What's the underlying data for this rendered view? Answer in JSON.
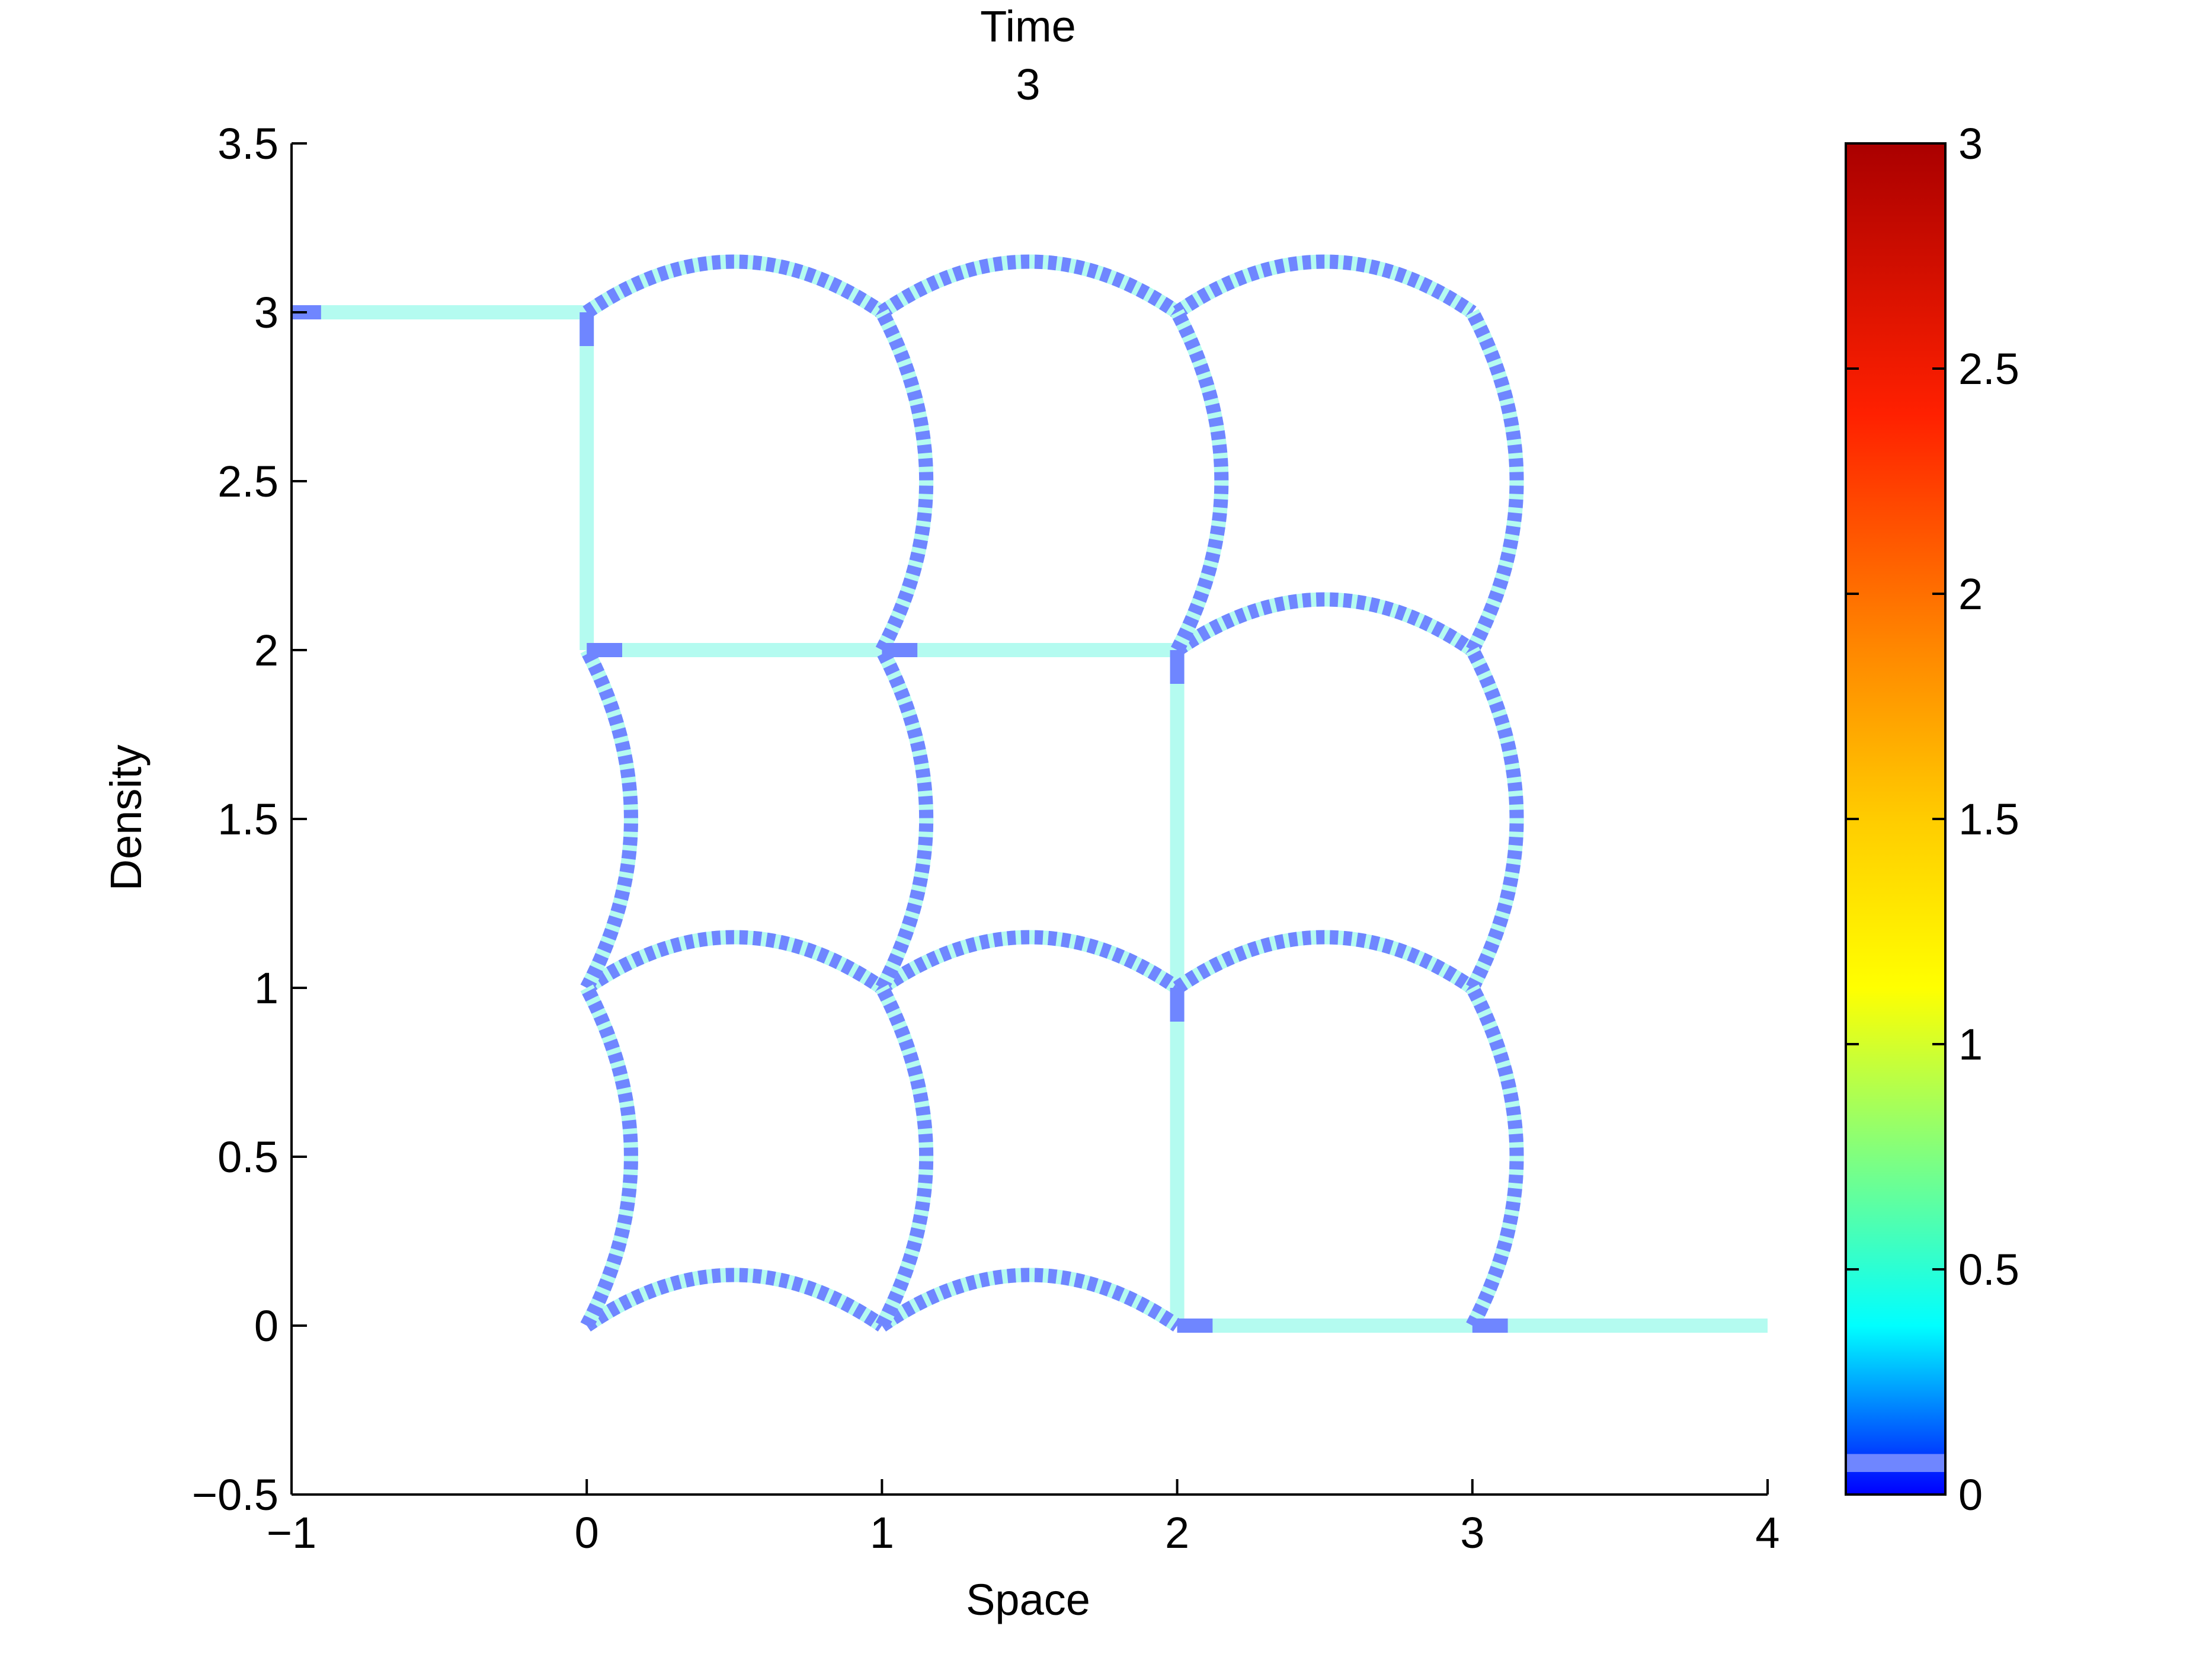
{
  "chart_data": {
    "type": "line",
    "title_line1": "Time",
    "title_line2": "3",
    "xlabel": "Space",
    "ylabel": "Density",
    "xlim": [
      -1,
      4
    ],
    "ylim": [
      -0.5,
      3.5
    ],
    "xticks": [
      -1,
      0,
      1,
      2,
      3,
      4
    ],
    "xtick_labels": [
      "−1",
      "0",
      "1",
      "2",
      "3",
      "4"
    ],
    "yticks": [
      -0.5,
      0,
      0.5,
      1,
      1.5,
      2,
      2.5,
      3,
      3.5
    ],
    "ytick_labels": [
      "−0.5",
      "0",
      "0.5",
      "1",
      "1.5",
      "2",
      "2.5",
      "3",
      "3.5"
    ],
    "grid": false,
    "colorbar": {
      "range": [
        0,
        3
      ],
      "ticks": [
        0,
        0.5,
        1,
        1.5,
        2,
        2.5,
        3
      ],
      "tick_labels": [
        "0",
        "0.5",
        "1",
        "1.5",
        "2",
        "2.5",
        "3"
      ],
      "colormap": "jet",
      "marked_band": [
        0.05,
        0.09
      ],
      "marked_color": "#6f86ff"
    },
    "colors": {
      "flat_segment": "#b4fbf0",
      "dashed_fg": "#6f86ff",
      "dashed_bg": "#b4fbf0"
    },
    "flat_segments": [
      {
        "x": [
          -1,
          0
        ],
        "y": [
          3,
          3
        ]
      },
      {
        "x": [
          0,
          0
        ],
        "y": [
          3,
          2
        ]
      },
      {
        "x": [
          0,
          2
        ],
        "y": [
          2,
          2
        ]
      },
      {
        "x": [
          2,
          2
        ],
        "y": [
          2,
          0
        ]
      },
      {
        "x": [
          2,
          4
        ],
        "y": [
          0,
          0
        ]
      }
    ],
    "endpoint_marks": [
      {
        "x": [
          -1,
          -0.9
        ],
        "y": [
          3,
          3
        ]
      },
      {
        "x": [
          0,
          0
        ],
        "y": [
          3,
          2.9
        ]
      },
      {
        "x": [
          0,
          0.12
        ],
        "y": [
          2,
          2
        ]
      },
      {
        "x": [
          1,
          1.12
        ],
        "y": [
          2,
          2
        ]
      },
      {
        "x": [
          2,
          2
        ],
        "y": [
          2,
          1.9
        ]
      },
      {
        "x": [
          2,
          2
        ],
        "y": [
          1,
          0.9
        ]
      },
      {
        "x": [
          2,
          2.12
        ],
        "y": [
          0,
          0
        ]
      },
      {
        "x": [
          3,
          3.12
        ],
        "y": [
          0,
          0
        ]
      }
    ],
    "arcs": {
      "bulge": 0.15,
      "horizontal": [
        {
          "x0": 0,
          "y": 3
        },
        {
          "x0": 1,
          "y": 3
        },
        {
          "x0": 2,
          "y": 3
        },
        {
          "x0": 2,
          "y": 2
        },
        {
          "x0": 0,
          "y": 1
        },
        {
          "x0": 1,
          "y": 1
        },
        {
          "x0": 2,
          "y": 1
        },
        {
          "x0": 0,
          "y": 0
        },
        {
          "x0": 1,
          "y": 0
        }
      ],
      "vertical": [
        {
          "x": 1,
          "y0": 2
        },
        {
          "x": 2,
          "y0": 2
        },
        {
          "x": 3,
          "y0": 2
        },
        {
          "x": 0,
          "y0": 1
        },
        {
          "x": 1,
          "y0": 1
        },
        {
          "x": 3,
          "y0": 1
        },
        {
          "x": 0,
          "y0": 0
        },
        {
          "x": 1,
          "y0": 0
        },
        {
          "x": 3,
          "y0": 0
        }
      ]
    }
  }
}
